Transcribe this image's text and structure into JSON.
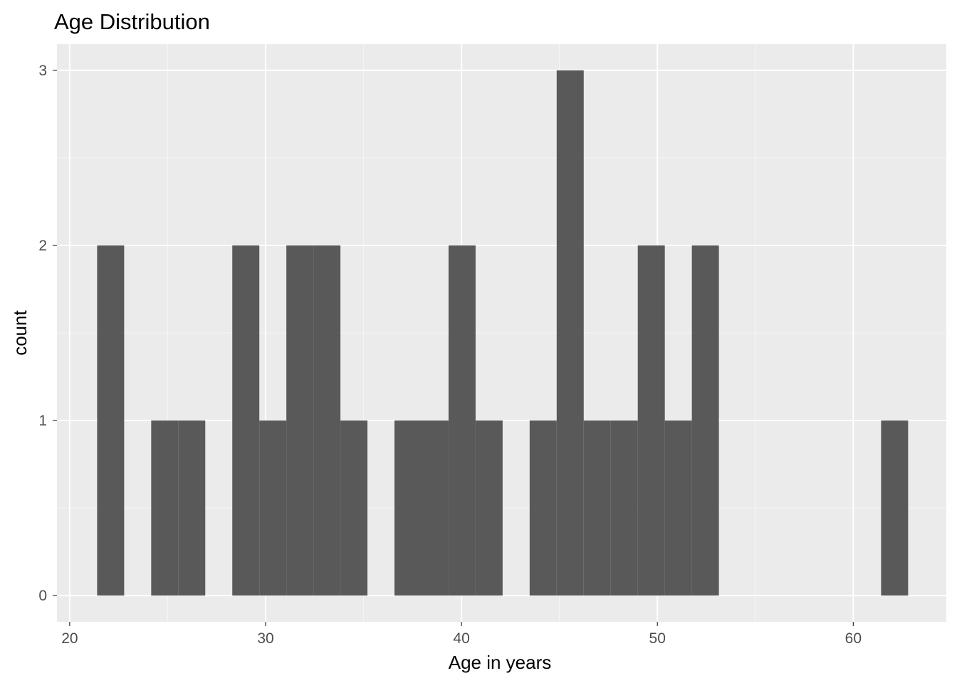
{
  "chart_data": {
    "type": "bar",
    "title": "Age Distribution",
    "xlabel": "Age in years",
    "ylabel": "count",
    "xlim": [
      19.35,
      64.75
    ],
    "ylim": [
      -0.15,
      3.15
    ],
    "x_ticks": [
      20,
      30,
      40,
      50,
      60
    ],
    "y_ticks": [
      0,
      1,
      2,
      3
    ],
    "grid": true,
    "bin_width": 1.38,
    "bins": [
      {
        "x0": 21.4,
        "x1": 22.78,
        "count": 2
      },
      {
        "x0": 22.78,
        "x1": 24.16,
        "count": 0
      },
      {
        "x0": 24.16,
        "x1": 25.54,
        "count": 1
      },
      {
        "x0": 25.54,
        "x1": 26.92,
        "count": 1
      },
      {
        "x0": 26.92,
        "x1": 28.3,
        "count": 0
      },
      {
        "x0": 28.3,
        "x1": 29.68,
        "count": 2
      },
      {
        "x0": 29.68,
        "x1": 31.06,
        "count": 1
      },
      {
        "x0": 31.06,
        "x1": 32.44,
        "count": 2
      },
      {
        "x0": 32.44,
        "x1": 33.82,
        "count": 2
      },
      {
        "x0": 33.82,
        "x1": 35.2,
        "count": 1
      },
      {
        "x0": 35.2,
        "x1": 36.58,
        "count": 0
      },
      {
        "x0": 36.58,
        "x1": 37.96,
        "count": 1
      },
      {
        "x0": 37.96,
        "x1": 39.34,
        "count": 1
      },
      {
        "x0": 39.34,
        "x1": 40.72,
        "count": 2
      },
      {
        "x0": 40.72,
        "x1": 42.1,
        "count": 1
      },
      {
        "x0": 42.1,
        "x1": 43.48,
        "count": 0
      },
      {
        "x0": 43.48,
        "x1": 44.86,
        "count": 1
      },
      {
        "x0": 44.86,
        "x1": 46.24,
        "count": 3
      },
      {
        "x0": 46.24,
        "x1": 47.62,
        "count": 1
      },
      {
        "x0": 47.62,
        "x1": 49.0,
        "count": 1
      },
      {
        "x0": 49.0,
        "x1": 50.38,
        "count": 2
      },
      {
        "x0": 50.38,
        "x1": 51.76,
        "count": 1
      },
      {
        "x0": 51.76,
        "x1": 53.14,
        "count": 2
      },
      {
        "x0": 53.14,
        "x1": 54.52,
        "count": 0
      },
      {
        "x0": 54.52,
        "x1": 55.9,
        "count": 0
      },
      {
        "x0": 55.9,
        "x1": 57.28,
        "count": 0
      },
      {
        "x0": 57.28,
        "x1": 58.66,
        "count": 0
      },
      {
        "x0": 58.66,
        "x1": 60.04,
        "count": 0
      },
      {
        "x0": 60.04,
        "x1": 61.42,
        "count": 0
      },
      {
        "x0": 61.42,
        "x1": 62.8,
        "count": 1
      }
    ],
    "colors": {
      "bar": "#595959",
      "panel": "#ebebeb",
      "grid_major": "#ffffff",
      "grid_minor": "#f5f5f5",
      "tick": "#333333"
    }
  }
}
